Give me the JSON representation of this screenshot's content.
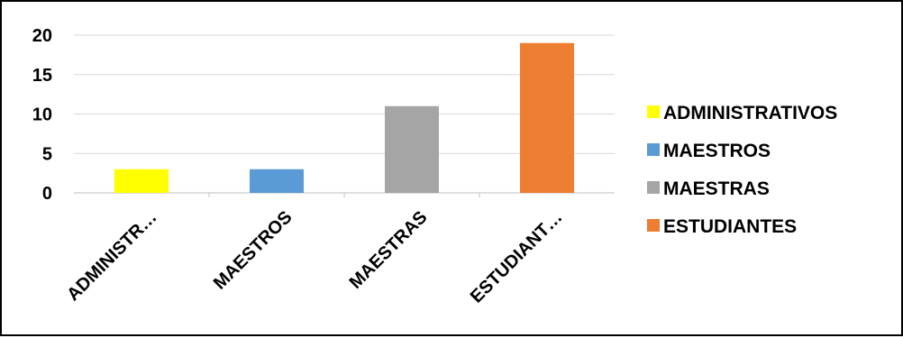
{
  "chart_data": {
    "type": "bar",
    "categories": [
      "ADMINISTRATIVOS",
      "MAESTROS",
      "MAESTRAS",
      "ESTUDIANTES"
    ],
    "category_tick_labels": [
      "ADMINISTR…",
      "MAESTROS",
      "MAESTRAS",
      "ESTUDIANT…"
    ],
    "values": [
      3,
      3,
      11,
      19
    ],
    "colors": [
      "#ffff00",
      "#5b9bd5",
      "#a5a5a5",
      "#ed7d31"
    ],
    "ylim": [
      0,
      20
    ],
    "yticks": [
      "0",
      "5",
      "10",
      "15",
      "20"
    ],
    "grid": true,
    "legend": {
      "position": "right",
      "entries": [
        "ADMINISTRATIVOS",
        "MAESTROS",
        "MAESTRAS",
        "ESTUDIANTES"
      ]
    }
  }
}
